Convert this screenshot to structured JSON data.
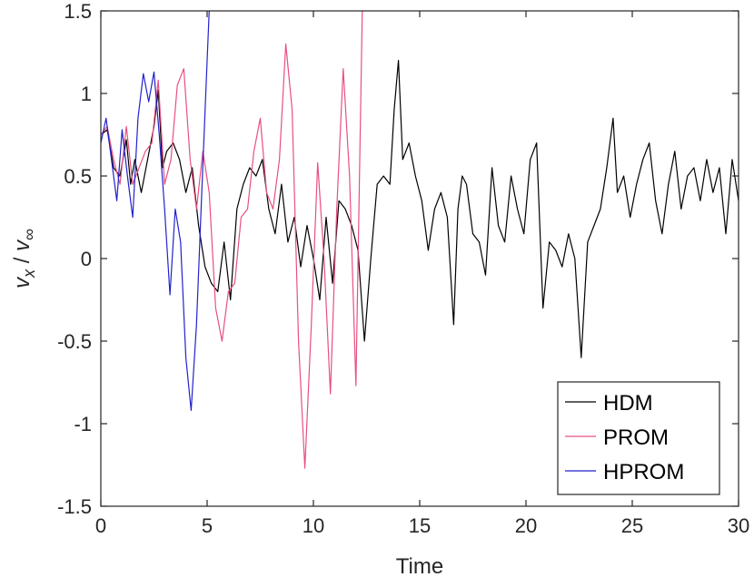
{
  "chart_data": {
    "type": "line",
    "title": "",
    "xlabel": "Time",
    "ylabel": "v_x / v_∞",
    "xlim": [
      0,
      30
    ],
    "ylim": [
      -1.5,
      1.5
    ],
    "xticks": [
      "0",
      "5",
      "10",
      "15",
      "20",
      "25",
      "30"
    ],
    "yticks": [
      "-1.5",
      "-1",
      "-0.5",
      "0",
      "0.5",
      "1",
      "1.5"
    ],
    "grid": false,
    "legend_position": "bottom-right",
    "series": [
      {
        "name": "HDM",
        "color": "#000000",
        "x": [
          0,
          0.3,
          0.6,
          0.9,
          1.2,
          1.4,
          1.6,
          1.9,
          2.2,
          2.5,
          2.7,
          2.9,
          3.1,
          3.4,
          3.7,
          4.0,
          4.3,
          4.6,
          4.9,
          5.2,
          5.5,
          5.8,
          6.1,
          6.4,
          6.7,
          7.0,
          7.3,
          7.6,
          7.9,
          8.2,
          8.5,
          8.8,
          9.1,
          9.4,
          9.7,
          10.0,
          10.3,
          10.6,
          10.9,
          11.2,
          11.5,
          11.8,
          12.1,
          12.4,
          12.7,
          13.0,
          13.3,
          13.6,
          13.8,
          14.0,
          14.2,
          14.5,
          14.8,
          15.1,
          15.4,
          15.7,
          16.0,
          16.3,
          16.6,
          16.8,
          17.0,
          17.2,
          17.5,
          17.8,
          18.1,
          18.4,
          18.7,
          19.0,
          19.3,
          19.6,
          19.9,
          20.2,
          20.5,
          20.8,
          21.1,
          21.4,
          21.7,
          22.0,
          22.3,
          22.6,
          22.9,
          23.2,
          23.5,
          23.8,
          24.1,
          24.3,
          24.6,
          24.9,
          25.2,
          25.5,
          25.8,
          26.1,
          26.4,
          26.7,
          27.0,
          27.3,
          27.6,
          27.9,
          28.2,
          28.5,
          28.8,
          29.1,
          29.4,
          29.7,
          30.0
        ],
        "y": [
          0.75,
          0.78,
          0.55,
          0.5,
          0.72,
          0.45,
          0.6,
          0.4,
          0.6,
          0.8,
          1.02,
          0.55,
          0.65,
          0.7,
          0.6,
          0.4,
          0.55,
          0.2,
          -0.05,
          -0.15,
          -0.2,
          0.1,
          -0.25,
          0.3,
          0.45,
          0.55,
          0.5,
          0.6,
          0.3,
          0.15,
          0.45,
          0.1,
          0.25,
          -0.05,
          0.2,
          0.0,
          -0.25,
          0.25,
          -0.15,
          0.35,
          0.3,
          0.2,
          0.05,
          -0.5,
          0.0,
          0.45,
          0.5,
          0.45,
          0.9,
          1.2,
          0.6,
          0.7,
          0.5,
          0.35,
          0.05,
          0.3,
          0.4,
          0.25,
          -0.4,
          0.3,
          0.5,
          0.45,
          0.15,
          0.1,
          -0.1,
          0.55,
          0.2,
          0.1,
          0.5,
          0.3,
          0.15,
          0.6,
          0.7,
          -0.3,
          0.1,
          0.05,
          -0.05,
          0.15,
          0.0,
          -0.6,
          0.1,
          0.2,
          0.3,
          0.55,
          0.85,
          0.4,
          0.5,
          0.25,
          0.45,
          0.6,
          0.7,
          0.35,
          0.15,
          0.45,
          0.65,
          0.3,
          0.5,
          0.55,
          0.35,
          0.6,
          0.4,
          0.55,
          0.15,
          0.6,
          0.35
        ]
      },
      {
        "name": "PROM",
        "color": "#e8507e",
        "x": [
          0,
          0.3,
          0.6,
          0.9,
          1.2,
          1.5,
          1.8,
          2.1,
          2.4,
          2.7,
          3.0,
          3.3,
          3.6,
          3.9,
          4.2,
          4.5,
          4.8,
          5.1,
          5.4,
          5.7,
          6.0,
          6.3,
          6.6,
          6.9,
          7.2,
          7.5,
          7.8,
          8.1,
          8.4,
          8.7,
          9.0,
          9.3,
          9.6,
          9.9,
          10.2,
          10.5,
          10.8,
          11.1,
          11.4,
          11.7,
          12.0,
          12.3
        ],
        "y": [
          0.75,
          0.8,
          0.6,
          0.45,
          0.8,
          0.45,
          0.55,
          0.65,
          0.7,
          1.08,
          0.45,
          0.6,
          1.05,
          1.15,
          0.6,
          0.3,
          0.65,
          0.4,
          -0.3,
          -0.5,
          -0.2,
          -0.15,
          0.25,
          0.3,
          0.65,
          0.85,
          0.4,
          0.3,
          0.6,
          1.3,
          0.9,
          -0.5,
          -1.27,
          -0.4,
          0.58,
          0.0,
          -0.82,
          0.3,
          1.15,
          0.5,
          -0.77,
          1.5
        ]
      },
      {
        "name": "HPROM",
        "color": "#2222cc",
        "x": [
          0,
          0.25,
          0.5,
          0.75,
          1.0,
          1.25,
          1.5,
          1.75,
          2.0,
          2.25,
          2.5,
          2.75,
          3.0,
          3.25,
          3.5,
          3.75,
          4.0,
          4.25,
          4.5,
          4.75,
          5.0,
          5.1
        ],
        "y": [
          0.7,
          0.85,
          0.6,
          0.35,
          0.78,
          0.5,
          0.25,
          0.85,
          1.12,
          0.95,
          1.13,
          0.75,
          0.3,
          -0.22,
          0.3,
          0.1,
          -0.6,
          -0.92,
          -0.4,
          0.4,
          1.2,
          1.5
        ]
      }
    ]
  }
}
